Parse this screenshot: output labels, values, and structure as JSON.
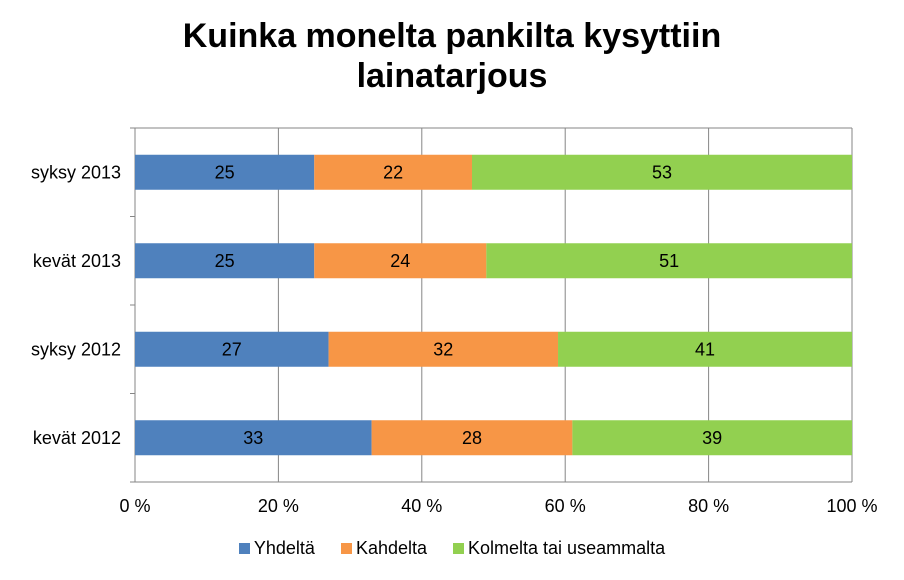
{
  "chart_data": {
    "type": "bar",
    "orientation": "horizontal",
    "stacked": true,
    "title_lines": [
      "Kuinka monelta pankilta kysyttiin",
      "lainatarjous"
    ],
    "categories": [
      "syksy 2013",
      "kevät 2013",
      "syksy 2012",
      "kevät 2012"
    ],
    "series": [
      {
        "name": "Yhdeltä",
        "color": "#4f81bd",
        "values": [
          25,
          25,
          27,
          33
        ]
      },
      {
        "name": "Kahdelta",
        "color": "#f79646",
        "values": [
          22,
          24,
          32,
          28
        ]
      },
      {
        "name": "Kolmelta tai useammalta",
        "color": "#92d050",
        "values": [
          53,
          51,
          41,
          39
        ]
      }
    ],
    "xlim": [
      0,
      100
    ],
    "x_ticks": [
      "0 %",
      "20 %",
      "40 %",
      "60 %",
      "80 %",
      "100 %"
    ],
    "grid": true,
    "legend_position": "bottom"
  }
}
